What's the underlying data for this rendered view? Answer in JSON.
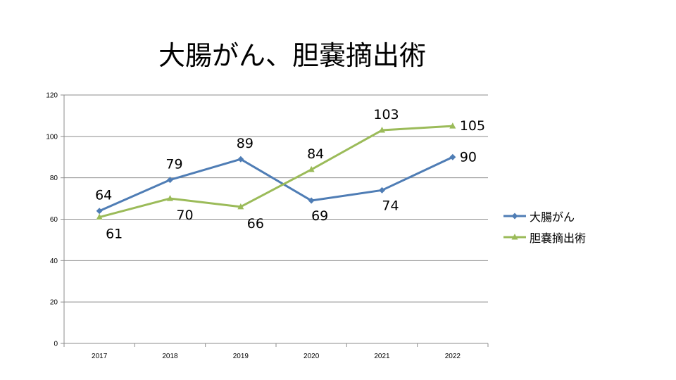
{
  "chart_data": {
    "type": "line",
    "title": "大腸がん、胆嚢摘出術",
    "categories": [
      "2017",
      "2018",
      "2019",
      "2020",
      "2021",
      "2022"
    ],
    "series": [
      {
        "name": "大腸がん",
        "values": [
          64,
          79,
          89,
          69,
          74,
          90
        ],
        "color": "#4F7DB5",
        "marker": "diamond",
        "label_position": [
          "above",
          "above",
          "above",
          "below",
          "below",
          "right"
        ]
      },
      {
        "name": "胆嚢摘出術",
        "values": [
          61,
          70,
          66,
          84,
          103,
          105
        ],
        "color": "#9BBB59",
        "marker": "triangle",
        "label_position": [
          "below",
          "below",
          "below",
          "above",
          "above",
          "right"
        ]
      }
    ],
    "ylim": [
      0,
      120
    ],
    "yticks": [
      "0",
      "20",
      "40",
      "60",
      "80",
      "100",
      "120"
    ],
    "xlabel": "",
    "ylabel": "",
    "grid": true,
    "legend_position": "right"
  }
}
